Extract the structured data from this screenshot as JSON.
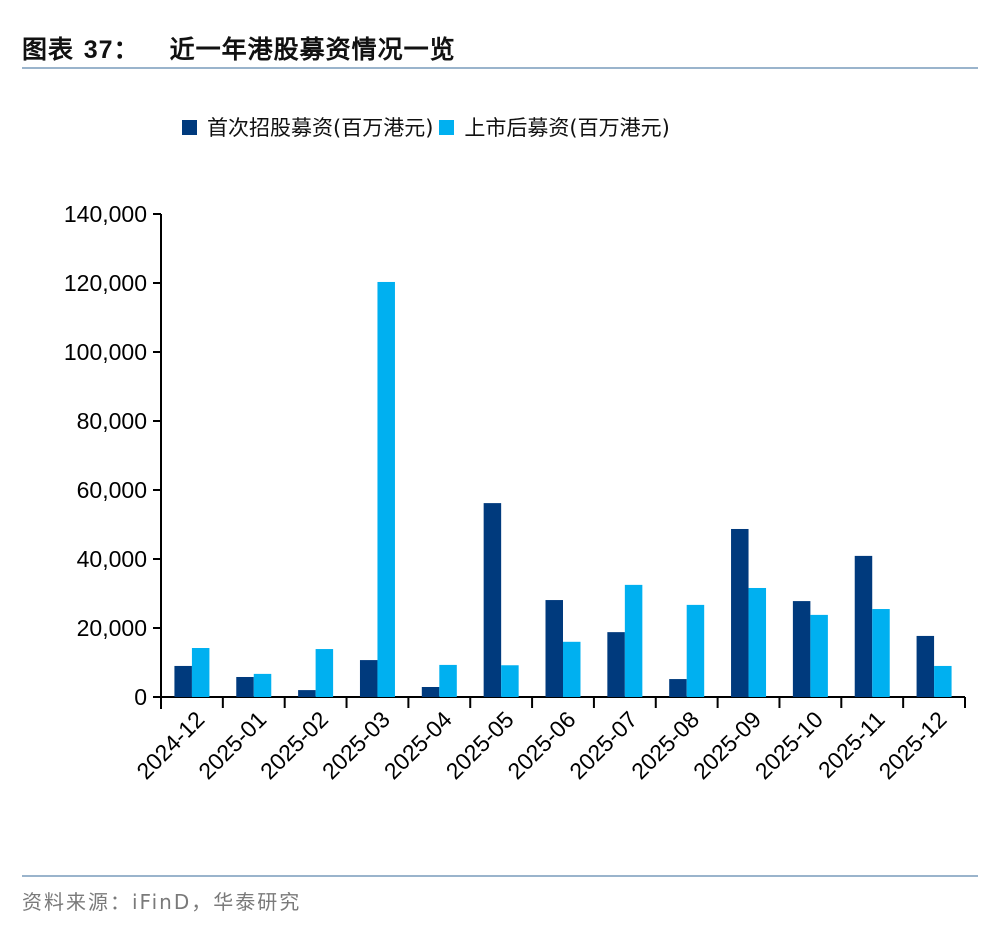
{
  "header": {
    "figure_label": "图表",
    "figure_number": "37",
    "colon": "：",
    "title": "近一年港股募资情况一览"
  },
  "legend": [
    {
      "label": "首次招股募资(百万港元)",
      "color": "#003a7d"
    },
    {
      "label": "上市后募资(百万港元)",
      "color": "#00b0f0"
    }
  ],
  "footer": {
    "source": "资料来源：iFinD，华泰研究"
  },
  "chart_data": {
    "type": "bar",
    "title": "近一年港股募资情况一览",
    "xlabel": "",
    "ylabel": "",
    "ylim": [
      0,
      140000
    ],
    "yticks": [
      0,
      20000,
      40000,
      60000,
      80000,
      100000,
      120000,
      140000
    ],
    "ytick_labels": [
      "0",
      "20,000",
      "40,000",
      "60,000",
      "80,000",
      "100,000",
      "120,000",
      "140,000"
    ],
    "grid": false,
    "legend_position": "top",
    "categories": [
      "2024-12",
      "2025-01",
      "2025-02",
      "2025-03",
      "2025-04",
      "2025-05",
      "2025-06",
      "2025-07",
      "2025-08",
      "2025-09",
      "2025-10",
      "2025-11",
      "2025-12"
    ],
    "series": [
      {
        "name": "首次招股募资(百万港元)",
        "color": "#003a7d",
        "values": [
          9000,
          5800,
          2000,
          10700,
          2900,
          56200,
          28100,
          18800,
          5200,
          48700,
          27800,
          40900,
          17700
        ]
      },
      {
        "name": "上市后募资(百万港元)",
        "color": "#00b0f0",
        "values": [
          14200,
          6700,
          13900,
          120300,
          9300,
          9200,
          16000,
          32500,
          26700,
          31600,
          23800,
          25500,
          9000
        ]
      }
    ]
  }
}
